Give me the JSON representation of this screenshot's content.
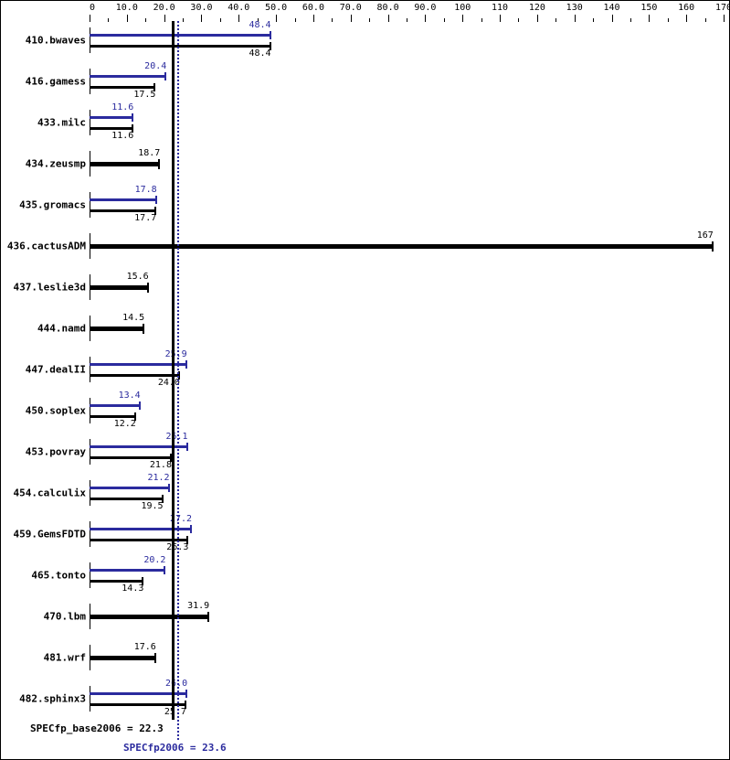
{
  "chart_data": {
    "type": "bar",
    "orientation": "horizontal",
    "title": "",
    "xlabel": "",
    "ylabel": "",
    "xlim": [
      0,
      170
    ],
    "x_ticks": [
      "0",
      "10.0",
      "20.0",
      "30.0",
      "40.0",
      "50.0",
      "60.0",
      "70.0",
      "80.0",
      "90.0",
      "100",
      "110",
      "120",
      "130",
      "140",
      "150",
      "160",
      "170"
    ],
    "grid": false,
    "categories": [
      "410.bwaves",
      "416.gamess",
      "433.milc",
      "434.zeusmp",
      "435.gromacs",
      "436.cactusADM",
      "437.leslie3d",
      "444.namd",
      "447.dealII",
      "450.soplex",
      "453.povray",
      "454.calculix",
      "459.GemsFDTD",
      "465.tonto",
      "470.lbm",
      "481.wrf",
      "482.sphinx3"
    ],
    "series": [
      {
        "name": "SPECfp2006 (peak)",
        "color": "#2b2b9e",
        "values": [
          48.4,
          20.4,
          11.6,
          null,
          17.8,
          null,
          null,
          null,
          25.9,
          13.4,
          26.1,
          21.2,
          27.2,
          20.2,
          null,
          null,
          26.0
        ]
      },
      {
        "name": "SPECfp_base2006 (base)",
        "color": "#000000",
        "values": [
          48.4,
          17.5,
          11.6,
          18.7,
          17.7,
          167,
          15.6,
          14.5,
          24.0,
          12.2,
          21.8,
          19.5,
          26.3,
          14.3,
          31.9,
          17.6,
          25.7
        ]
      }
    ],
    "reference_lines": [
      {
        "name": "SPECfp_base2006",
        "value": 22.3,
        "style": "solid",
        "color": "#000000"
      },
      {
        "name": "SPECfp2006",
        "value": 23.6,
        "style": "dotted",
        "color": "#2b2b9e"
      }
    ],
    "legend": "none"
  },
  "summary": {
    "base_label": "SPECfp_base2006 = 22.3",
    "peak_label": "SPECfp2006 = 23.6"
  },
  "colors": {
    "peak": "#2b2b9e",
    "base": "#000000"
  }
}
